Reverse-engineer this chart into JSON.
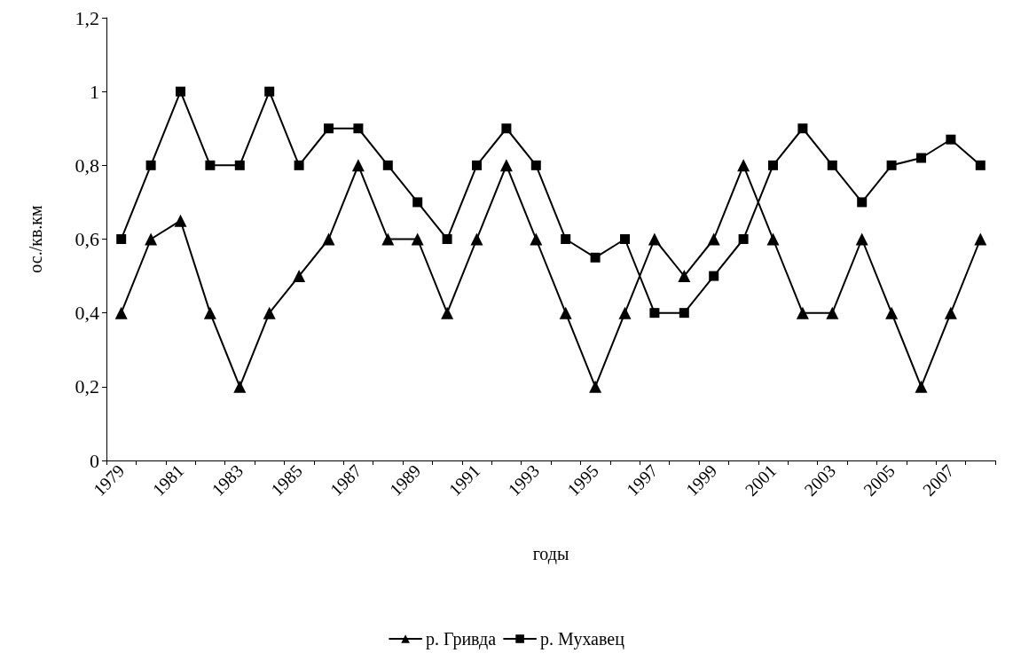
{
  "chart_data": {
    "type": "line",
    "xlabel": "годы",
    "ylabel": "ос./кв.км",
    "categories": [
      "1979",
      null,
      "1981",
      null,
      "1983",
      null,
      "1985",
      null,
      "1987",
      null,
      "1989",
      null,
      "1991",
      null,
      "1993",
      null,
      "1995",
      null,
      "1997",
      null,
      "1999",
      null,
      "2001",
      null,
      "2003",
      null,
      "2005",
      null,
      "2007",
      null
    ],
    "series": [
      {
        "name": "р. Гривда",
        "color": "#000000",
        "marker": "triangle",
        "values": [
          0.4,
          0.6,
          0.65,
          0.4,
          0.2,
          0.4,
          0.5,
          0.6,
          0.8,
          0.6,
          0.6,
          0.4,
          0.6,
          0.8,
          0.6,
          0.4,
          0.2,
          0.4,
          0.6,
          0.5,
          0.6,
          0.8,
          0.6,
          0.4,
          0.4,
          0.6,
          0.4,
          0.2,
          0.4,
          0.6
        ]
      },
      {
        "name": "р. Мухавец",
        "color": "#000000",
        "marker": "square",
        "values": [
          0.6,
          0.8,
          1,
          0.8,
          0.8,
          1,
          0.8,
          0.9,
          0.9,
          0.8,
          0.7,
          0.6,
          0.8,
          0.9,
          0.8,
          0.6,
          0.55,
          0.6,
          0.4,
          0.4,
          0.5,
          0.6,
          0.8,
          0.9,
          0.8,
          0.7,
          0.8,
          0.82,
          0.87,
          0.8
        ]
      }
    ],
    "ylim": [
      0,
      1.2
    ],
    "yticks": [
      0,
      {
        "value": 0.2,
        "label": "0,2"
      },
      {
        "value": 0.4,
        "label": "0,4"
      },
      {
        "value": 0.6,
        "label": "0,6"
      },
      {
        "value": 0.8,
        "label": "0,8"
      },
      1,
      {
        "value": 1.2,
        "label": "1,2"
      }
    ],
    "grid": false,
    "legend": "bottom",
    "line_style": "solid"
  }
}
